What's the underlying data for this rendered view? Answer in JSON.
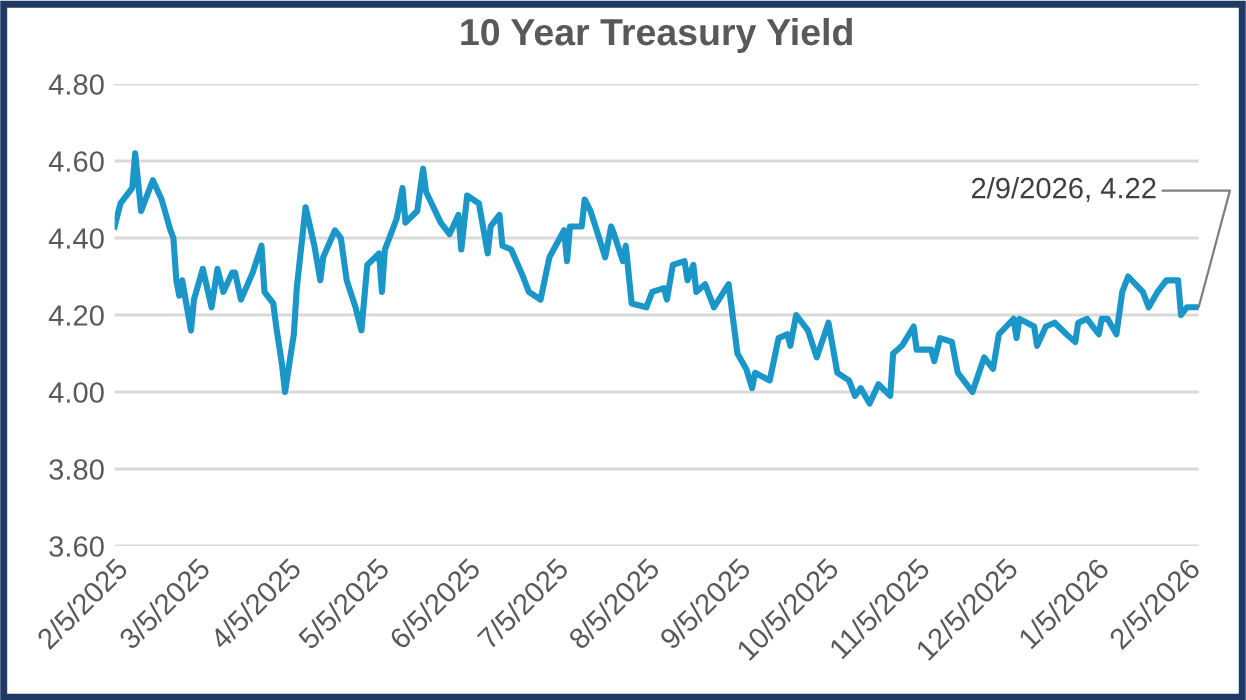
{
  "chart_data": {
    "type": "line",
    "title": "10 Year Treasury Yield",
    "x": [
      "2025-02-05",
      "2025-02-07",
      "2025-02-11",
      "2025-02-12",
      "2025-02-14",
      "2025-02-18",
      "2025-02-21",
      "2025-02-24",
      "2025-02-25",
      "2025-02-26",
      "2025-02-27",
      "2025-02-28",
      "2025-03-03",
      "2025-03-04",
      "2025-03-07",
      "2025-03-10",
      "2025-03-12",
      "2025-03-14",
      "2025-03-17",
      "2025-03-18",
      "2025-03-20",
      "2025-03-24",
      "2025-03-27",
      "2025-03-28",
      "2025-03-31",
      "2025-04-01",
      "2025-04-03",
      "2025-04-04",
      "2025-04-07",
      "2025-04-08",
      "2025-04-11",
      "2025-04-14",
      "2025-04-16",
      "2025-04-17",
      "2025-04-21",
      "2025-04-23",
      "2025-04-25",
      "2025-04-28",
      "2025-04-30",
      "2025-05-02",
      "2025-05-06",
      "2025-05-07",
      "2025-05-08",
      "2025-05-12",
      "2025-05-14",
      "2025-05-15",
      "2025-05-19",
      "2025-05-21",
      "2025-05-22",
      "2025-05-27",
      "2025-05-30",
      "2025-06-02",
      "2025-06-03",
      "2025-06-05",
      "2025-06-09",
      "2025-06-12",
      "2025-06-13",
      "2025-06-16",
      "2025-06-17",
      "2025-06-20",
      "2025-06-24",
      "2025-06-26",
      "2025-06-30",
      "2025-07-03",
      "2025-07-08",
      "2025-07-09",
      "2025-07-10",
      "2025-07-14",
      "2025-07-15",
      "2025-07-17",
      "2025-07-22",
      "2025-07-24",
      "2025-07-25",
      "2025-07-28",
      "2025-07-29",
      "2025-07-31",
      "2025-08-05",
      "2025-08-07",
      "2025-08-11",
      "2025-08-12",
      "2025-08-14",
      "2025-08-18",
      "2025-08-19",
      "2025-08-21",
      "2025-08-22",
      "2025-08-25",
      "2025-08-28",
      "2025-09-02",
      "2025-09-05",
      "2025-09-08",
      "2025-09-10",
      "2025-09-11",
      "2025-09-16",
      "2025-09-19",
      "2025-09-22",
      "2025-09-23",
      "2025-09-25",
      "2025-09-29",
      "2025-10-02",
      "2025-10-06",
      "2025-10-09",
      "2025-10-13",
      "2025-10-15",
      "2025-10-17",
      "2025-10-20",
      "2025-10-23",
      "2025-10-27",
      "2025-10-28",
      "2025-10-31",
      "2025-11-04",
      "2025-11-05",
      "2025-11-10",
      "2025-11-11",
      "2025-11-13",
      "2025-11-17",
      "2025-11-19",
      "2025-11-21",
      "2025-11-24",
      "2025-11-28",
      "2025-12-01",
      "2025-12-03",
      "2025-12-08",
      "2025-12-09",
      "2025-12-10",
      "2025-12-15",
      "2025-12-16",
      "2025-12-19",
      "2025-12-22",
      "2025-12-26",
      "2025-12-29",
      "2025-12-30",
      "2026-01-02",
      "2026-01-06",
      "2026-01-07",
      "2026-01-09",
      "2026-01-12",
      "2026-01-14",
      "2026-01-16",
      "2026-01-21",
      "2026-01-23",
      "2026-01-26",
      "2026-01-29",
      "2026-02-02",
      "2026-02-03",
      "2026-02-05",
      "2026-02-09"
    ],
    "series": [
      {
        "color": "#1a96c8",
        "values": [
          4.43,
          4.49,
          4.53,
          4.62,
          4.47,
          4.55,
          4.5,
          4.42,
          4.4,
          4.29,
          4.25,
          4.29,
          4.16,
          4.24,
          4.32,
          4.22,
          4.32,
          4.26,
          4.31,
          4.31,
          4.24,
          4.31,
          4.38,
          4.26,
          4.23,
          4.17,
          4.07,
          4.0,
          4.15,
          4.27,
          4.48,
          4.38,
          4.29,
          4.35,
          4.42,
          4.4,
          4.29,
          4.22,
          4.16,
          4.33,
          4.36,
          4.26,
          4.37,
          4.45,
          4.53,
          4.44,
          4.47,
          4.58,
          4.52,
          4.44,
          4.41,
          4.46,
          4.37,
          4.51,
          4.49,
          4.36,
          4.43,
          4.46,
          4.38,
          4.37,
          4.3,
          4.26,
          4.24,
          4.35,
          4.42,
          4.34,
          4.43,
          4.43,
          4.5,
          4.47,
          4.35,
          4.43,
          4.41,
          4.34,
          4.38,
          4.23,
          4.22,
          4.26,
          4.27,
          4.24,
          4.33,
          4.34,
          4.29,
          4.33,
          4.26,
          4.28,
          4.22,
          4.28,
          4.1,
          4.06,
          4.01,
          4.05,
          4.03,
          4.14,
          4.15,
          4.12,
          4.2,
          4.16,
          4.09,
          4.18,
          4.05,
          4.03,
          3.99,
          4.01,
          3.97,
          4.02,
          3.99,
          4.1,
          4.12,
          4.17,
          4.11,
          4.11,
          4.08,
          4.14,
          4.13,
          4.05,
          4.03,
          4.0,
          4.09,
          4.06,
          4.15,
          4.19,
          4.14,
          4.19,
          4.17,
          4.12,
          4.17,
          4.18,
          4.15,
          4.13,
          4.18,
          4.19,
          4.15,
          4.19,
          4.19,
          4.15,
          4.26,
          4.3,
          4.26,
          4.22,
          4.26,
          4.29,
          4.29,
          4.2,
          4.22,
          4.22
        ]
      }
    ],
    "xlim": [
      "2025-02-05",
      "2026-02-09"
    ],
    "xticks": [
      {
        "value": "2025-02-05",
        "label": "2/5/2025"
      },
      {
        "value": "2025-03-05",
        "label": "3/5/2025"
      },
      {
        "value": "2025-04-05",
        "label": "4/5/2025"
      },
      {
        "value": "2025-05-05",
        "label": "5/5/2025"
      },
      {
        "value": "2025-06-05",
        "label": "6/5/2025"
      },
      {
        "value": "2025-07-05",
        "label": "7/5/2025"
      },
      {
        "value": "2025-08-05",
        "label": "8/5/2025"
      },
      {
        "value": "2025-09-05",
        "label": "9/5/2025"
      },
      {
        "value": "2025-10-05",
        "label": "10/5/2025"
      },
      {
        "value": "2025-11-05",
        "label": "11/5/2025"
      },
      {
        "value": "2025-12-05",
        "label": "12/5/2025"
      },
      {
        "value": "2026-01-05",
        "label": "1/5/2026"
      },
      {
        "value": "2026-02-05",
        "label": "2/5/2026"
      }
    ],
    "ylim": [
      3.6,
      4.8
    ],
    "yticks": [
      {
        "value": 3.6,
        "label": "3.60"
      },
      {
        "value": 3.8,
        "label": "3.80"
      },
      {
        "value": 4.0,
        "label": "4.00"
      },
      {
        "value": 4.2,
        "label": "4.20"
      },
      {
        "value": 4.4,
        "label": "4.40"
      },
      {
        "value": 4.6,
        "label": "4.60"
      },
      {
        "value": 4.8,
        "label": "4.80"
      }
    ],
    "grid": "y",
    "line_style": "solid",
    "annotations": [
      {
        "text": "2/9/2026, 4.22",
        "x": "2026-02-09",
        "y": 4.22
      }
    ]
  }
}
